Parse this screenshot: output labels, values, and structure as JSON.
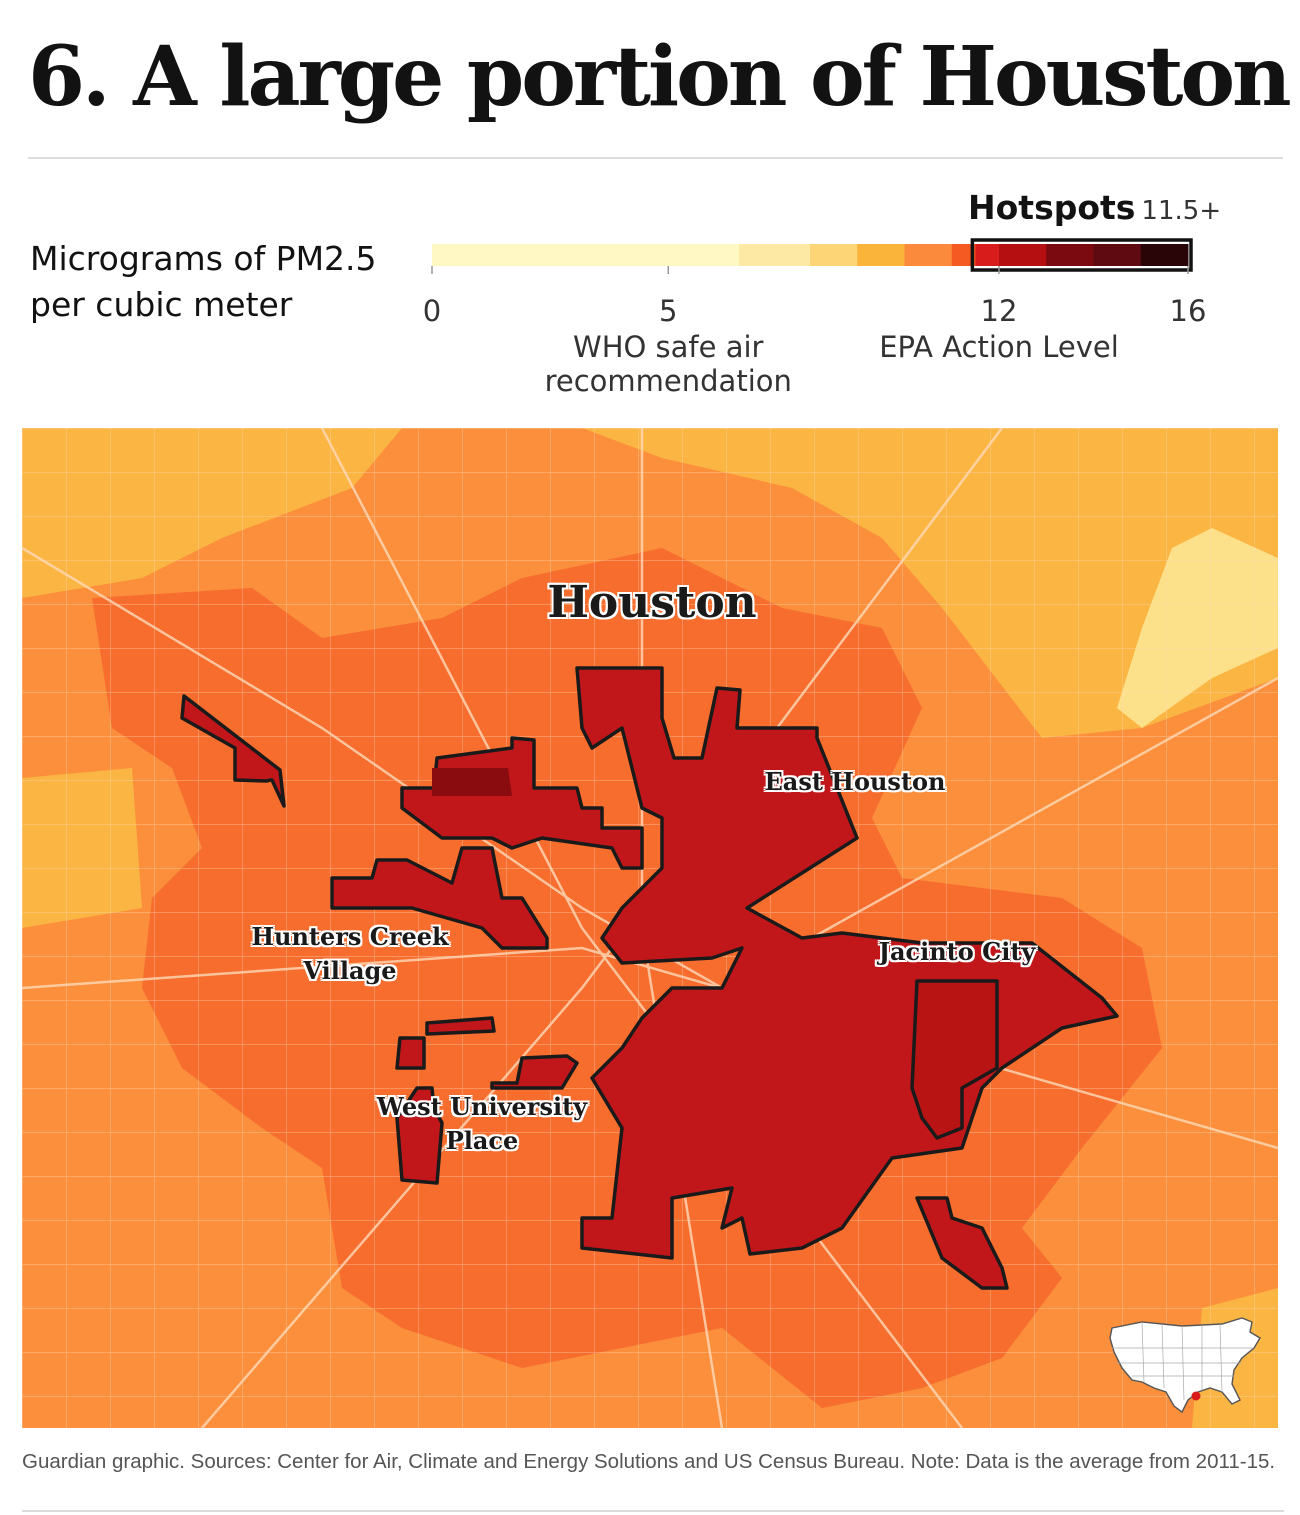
{
  "headline": "6. A large portion of Houston",
  "legend": {
    "title": "Micrograms of PM2.5 per cubic meter",
    "hotspots_label": "Hotspots",
    "hotspots_value": "11.5+",
    "ticks": [
      {
        "value": "0"
      },
      {
        "value": "5",
        "caption": "WHO safe air recommendation"
      },
      {
        "value": "12",
        "caption": "EPA Action Level"
      },
      {
        "value": "16"
      }
    ],
    "scale": {
      "min": 0,
      "max": 16,
      "hotspot_threshold": 11.5
    },
    "bins": [
      {
        "from": 0,
        "to": 6.5,
        "color": "#fff7c4"
      },
      {
        "from": 6.5,
        "to": 8.0,
        "color": "#fde9a3"
      },
      {
        "from": 8.0,
        "to": 9.0,
        "color": "#fdd576"
      },
      {
        "from": 9.0,
        "to": 10.0,
        "color": "#fbb43a"
      },
      {
        "from": 10.0,
        "to": 11.0,
        "color": "#fb8a3c"
      },
      {
        "from": 11.0,
        "to": 11.5,
        "color": "#f45a22"
      },
      {
        "from": 11.5,
        "to": 12.0,
        "color": "#d81c1c"
      },
      {
        "from": 12.0,
        "to": 13.0,
        "color": "#b50f12"
      },
      {
        "from": 13.0,
        "to": 14.0,
        "color": "#7a0a0f"
      },
      {
        "from": 14.0,
        "to": 15.0,
        "color": "#5e0a10"
      },
      {
        "from": 15.0,
        "to": 16.0,
        "color": "#2a0508"
      }
    ]
  },
  "map": {
    "colors": {
      "base": "#fb8f3c",
      "light": "#fbb542",
      "palest": "#fde08a",
      "mid": "#f4612a",
      "hotspot": "#c2171a",
      "darkest": "#8a0c0f",
      "roads": "#ffd9b8",
      "outline": "#1a1a1a"
    },
    "labels": {
      "city": "Houston",
      "east_houston": "East Houston",
      "hunters_creek_1": "Hunters Creek",
      "hunters_creek_2": "Village",
      "jacinto_city": "Jacinto City",
      "west_university_1": "West University",
      "west_university_2": "Place"
    },
    "inset_icon": "us-locator-map-icon"
  },
  "source": "Guardian graphic. Sources: Center for Air, Climate and Energy Solutions and US Census Bureau. Note: Data is the average from 2011-15."
}
